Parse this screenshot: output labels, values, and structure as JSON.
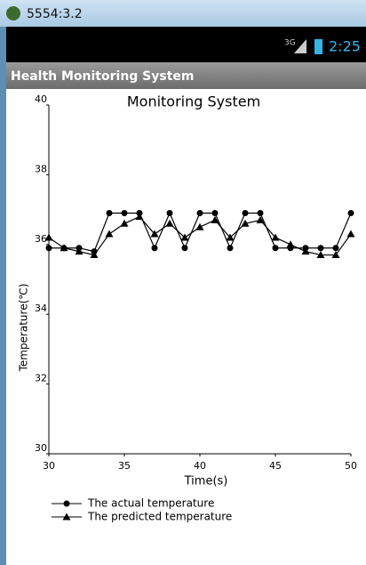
{
  "window": {
    "title": "5554:3.2"
  },
  "status_bar": {
    "network": "3G",
    "time": "2:25"
  },
  "app_bar": {
    "title": "Health Monitoring System"
  },
  "chart_data": {
    "type": "line",
    "title": "Monitoring System",
    "x_label": "Time(s)",
    "y_label": "Temperature(℃)",
    "x": [
      30,
      31,
      32,
      33,
      34,
      35,
      36,
      37,
      38,
      39,
      40,
      41,
      42,
      43,
      44,
      45,
      46,
      47,
      48,
      49,
      50
    ],
    "series": [
      {
        "name": "The actual temperature",
        "color": "#000000",
        "marker": "circle",
        "values": [
          35.9,
          35.9,
          35.9,
          35.8,
          36.9,
          36.9,
          36.9,
          35.9,
          36.9,
          35.9,
          36.9,
          36.9,
          35.9,
          36.9,
          36.9,
          35.9,
          35.9,
          35.9,
          35.9,
          35.9,
          36.9
        ]
      },
      {
        "name": "The predicted temperature",
        "color": "#000000",
        "marker": "triangle",
        "values": [
          36.2,
          35.9,
          35.8,
          35.7,
          36.3,
          36.6,
          36.8,
          36.3,
          36.6,
          36.2,
          36.5,
          36.7,
          36.2,
          36.6,
          36.7,
          36.2,
          36.0,
          35.8,
          35.7,
          35.7,
          36.3
        ]
      }
    ],
    "xlim": [
      30,
      50
    ],
    "xticks": [
      30,
      35,
      40,
      45,
      50
    ],
    "ylim": [
      30,
      40
    ],
    "yticks": [
      30,
      32,
      34,
      36,
      38,
      40
    ],
    "grid": false
  }
}
